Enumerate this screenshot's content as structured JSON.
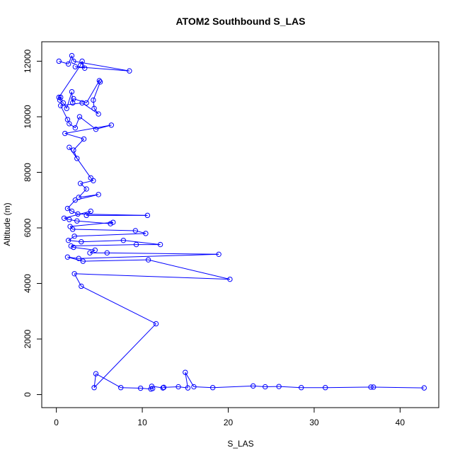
{
  "chart_data": {
    "type": "line",
    "title": "ATOM2 Southbound S_LAS",
    "xlabel": "S_LAS",
    "ylabel": "Altitude (m)",
    "xlim": [
      -1.7,
      44.5
    ],
    "ylim": [
      -470,
      12700
    ],
    "xticks": [
      0,
      10,
      20,
      30,
      40
    ],
    "yticks": [
      0,
      2000,
      4000,
      6000,
      8000,
      10000,
      12000
    ],
    "series_color": "#0000ff",
    "marker": "open-circle",
    "grid": false,
    "series": [
      {
        "values": [
          [
            0.3,
            12000
          ],
          [
            1.4,
            11900
          ],
          [
            1.8,
            12200
          ],
          [
            2.0,
            12000
          ],
          [
            8.5,
            11650
          ],
          [
            2.2,
            11800
          ],
          [
            3.3,
            11750
          ],
          [
            3.0,
            12000
          ],
          [
            2.8,
            11850
          ],
          [
            0.3,
            10700
          ],
          [
            0.5,
            10700
          ],
          [
            0.4,
            10600
          ],
          [
            0.8,
            10500
          ],
          [
            1.2,
            10300
          ],
          [
            1.8,
            10900
          ],
          [
            1.9,
            10500
          ],
          [
            2.0,
            10650
          ],
          [
            3.5,
            10500
          ],
          [
            5.0,
            11300
          ],
          [
            5.1,
            11250
          ],
          [
            4.3,
            10600
          ],
          [
            4.4,
            10300
          ],
          [
            4.9,
            10100
          ],
          [
            3.0,
            10500
          ],
          [
            0.5,
            10400
          ],
          [
            1.3,
            9900
          ],
          [
            1.5,
            9750
          ],
          [
            2.2,
            9600
          ],
          [
            2.7,
            10000
          ],
          [
            4.6,
            9550
          ],
          [
            6.4,
            9700
          ],
          [
            1.0,
            9400
          ],
          [
            3.2,
            9200
          ],
          [
            2.0,
            8800
          ],
          [
            2.4,
            8500
          ],
          [
            1.5,
            8900
          ],
          [
            4.0,
            7800
          ],
          [
            4.3,
            7700
          ],
          [
            2.8,
            7600
          ],
          [
            3.5,
            7400
          ],
          [
            2.6,
            7100
          ],
          [
            4.9,
            7200
          ],
          [
            2.2,
            7000
          ],
          [
            1.3,
            6700
          ],
          [
            1.8,
            6600
          ],
          [
            2.5,
            6500
          ],
          [
            10.6,
            6450
          ],
          [
            3.5,
            6450
          ],
          [
            4.0,
            6600
          ],
          [
            0.9,
            6350
          ],
          [
            1.5,
            6300
          ],
          [
            2.4,
            6250
          ],
          [
            6.3,
            6150
          ],
          [
            6.6,
            6200
          ],
          [
            1.6,
            6050
          ],
          [
            1.9,
            5950
          ],
          [
            9.2,
            5900
          ],
          [
            10.4,
            5800
          ],
          [
            2.1,
            5700
          ],
          [
            1.4,
            5550
          ],
          [
            2.9,
            5500
          ],
          [
            7.8,
            5550
          ],
          [
            12.1,
            5400
          ],
          [
            9.3,
            5400
          ],
          [
            1.7,
            5350
          ],
          [
            2.0,
            5300
          ],
          [
            4.5,
            5200
          ],
          [
            3.9,
            5100
          ],
          [
            5.9,
            5100
          ],
          [
            18.9,
            5050
          ],
          [
            2.6,
            4900
          ],
          [
            1.3,
            4950
          ],
          [
            3.1,
            4800
          ],
          [
            10.7,
            4850
          ],
          [
            20.2,
            4150
          ],
          [
            2.1,
            4350
          ],
          [
            2.9,
            3900
          ],
          [
            11.6,
            2550
          ],
          [
            4.4,
            250
          ],
          [
            4.6,
            750
          ],
          [
            7.5,
            250
          ],
          [
            9.8,
            230
          ],
          [
            11.0,
            200
          ],
          [
            11.2,
            220
          ],
          [
            11.1,
            300
          ],
          [
            12.4,
            240
          ],
          [
            12.5,
            260
          ],
          [
            14.2,
            280
          ],
          [
            15.3,
            240
          ],
          [
            15.0,
            800
          ],
          [
            16.0,
            280
          ],
          [
            18.2,
            250
          ],
          [
            22.9,
            310
          ],
          [
            24.3,
            280
          ],
          [
            25.9,
            290
          ],
          [
            28.5,
            250
          ],
          [
            31.3,
            250
          ],
          [
            36.6,
            270
          ],
          [
            36.9,
            270
          ],
          [
            42.8,
            240
          ]
        ]
      }
    ]
  }
}
